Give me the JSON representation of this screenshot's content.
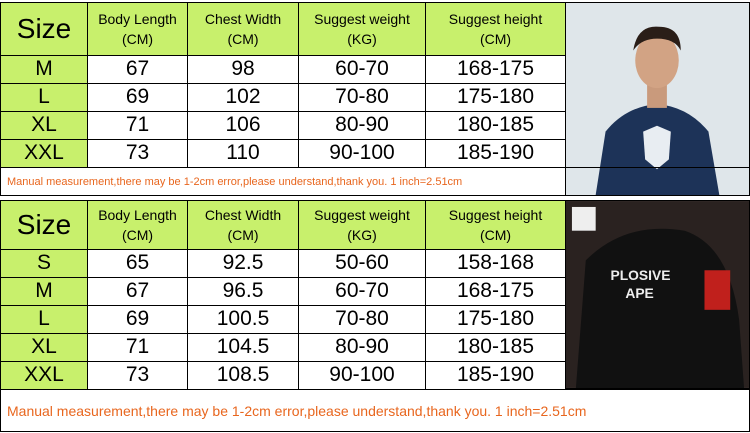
{
  "tables": [
    {
      "header": [
        [
          "Size"
        ],
        [
          "Body Length",
          "(CM)"
        ],
        [
          "Chest Width",
          "(CM)"
        ],
        [
          "Suggest weight",
          "(KG)"
        ],
        [
          "Suggest height",
          "(CM)"
        ]
      ],
      "rows": [
        [
          "M",
          "67",
          "98",
          "60-70",
          "168-175"
        ],
        [
          "L",
          "69",
          "102",
          "70-80",
          "175-180"
        ],
        [
          "XL",
          "71",
          "106",
          "80-90",
          "180-185"
        ],
        [
          "XXL",
          "73",
          "110",
          "90-100",
          "185-190"
        ]
      ],
      "note": "Manual measurement,there may be 1-2cm error,please understand,thank you. 1 inch=2.51cm"
    },
    {
      "header": [
        [
          "Size"
        ],
        [
          "Body Length",
          "(CM)"
        ],
        [
          "Chest Width",
          "(CM)"
        ],
        [
          "Suggest weight",
          "(KG)"
        ],
        [
          "Suggest height",
          "(CM)"
        ]
      ],
      "rows": [
        [
          "S",
          "65",
          "92.5",
          "50-60",
          "158-168"
        ],
        [
          "M",
          "67",
          "96.5",
          "60-70",
          "168-175"
        ],
        [
          "L",
          "69",
          "100.5",
          "70-80",
          "175-180"
        ],
        [
          "XL",
          "71",
          "104.5",
          "80-90",
          "180-185"
        ],
        [
          "XXL",
          "73",
          "108.5",
          "90-100",
          "185-190"
        ]
      ],
      "note": "Manual measurement,there may be 1-2cm error,please understand,thank you. 1 inch=2.51cm"
    }
  ]
}
